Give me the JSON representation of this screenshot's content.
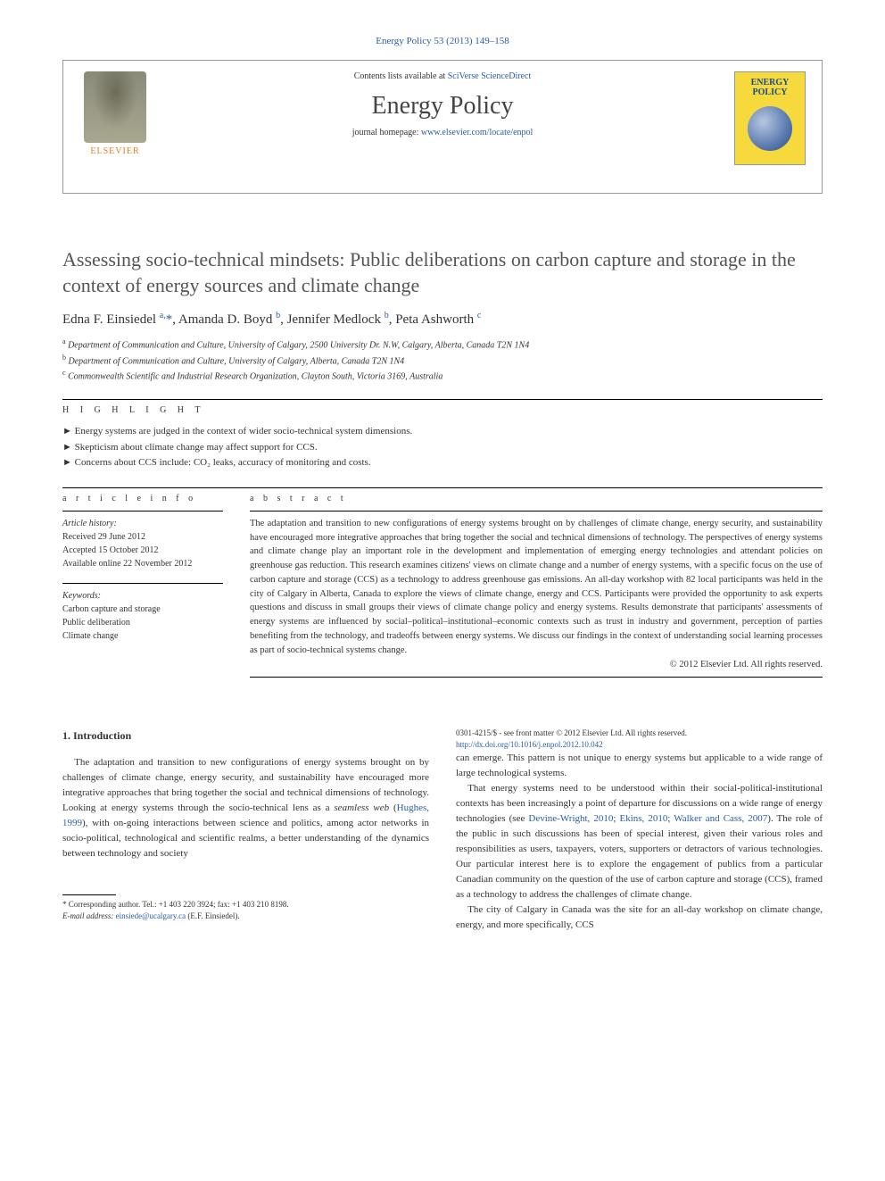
{
  "journal_ref": "Energy Policy 53 (2013) 149–158",
  "header": {
    "contents_text": "Contents lists available at ",
    "contents_link": "SciVerse ScienceDirect",
    "journal_name": "Energy Policy",
    "homepage_label": "journal homepage: ",
    "homepage_url": "www.elsevier.com/locate/enpol",
    "publisher_label": "ELSEVIER",
    "cover_title": "ENERGY POLICY"
  },
  "title": "Assessing socio-technical mindsets: Public deliberations on carbon capture and storage in the context of energy sources and climate change",
  "authors_html": "Edna F. Einsiedel <sup>a,</sup>*, Amanda D. Boyd <sup>b</sup>, Jennifer Medlock <sup>b</sup>, Peta Ashworth <sup>c</sup>",
  "affiliations": [
    {
      "sup": "a",
      "text": "Department of Communication and Culture, University of Calgary, 2500 University Dr. N.W, Calgary, Alberta, Canada T2N 1N4"
    },
    {
      "sup": "b",
      "text": "Department of Communication and Culture, University of Calgary, Alberta, Canada T2N 1N4"
    },
    {
      "sup": "c",
      "text": "Commonwealth Scientific and Industrial Research Organization, Clayton South, Victoria 3169, Australia"
    }
  ],
  "highlight_label": "H I G H L I G H T",
  "highlights": [
    "Energy systems are judged in the context of wider socio-technical system dimensions.",
    "Skepticism about climate change may affect support for CCS.",
    "Concerns about CCS include: CO₂ leaks, accuracy of monitoring and costs."
  ],
  "article_info_label": "a r t i c l e  i n f o",
  "abstract_label": "a b s t r a c t",
  "history": {
    "head": "Article history:",
    "received": "Received 29 June 2012",
    "accepted": "Accepted 15 October 2012",
    "online": "Available online 22 November 2012"
  },
  "keywords": {
    "head": "Keywords:",
    "items": [
      "Carbon capture and storage",
      "Public deliberation",
      "Climate change"
    ]
  },
  "abstract": "The adaptation and transition to new configurations of energy systems brought on by challenges of climate change, energy security, and sustainability have encouraged more integrative approaches that bring together the social and technical dimensions of technology. The perspectives of energy systems and climate change play an important role in the development and implementation of emerging energy technologies and attendant policies on greenhouse gas reduction. This research examines citizens' views on climate change and a number of energy systems, with a specific focus on the use of carbon capture and storage (CCS) as a technology to address greenhouse gas emissions. An all-day workshop with 82 local participants was held in the city of Calgary in Alberta, Canada to explore the views of climate change, energy and CCS. Participants were provided the opportunity to ask experts questions and discuss in small groups their views of climate change policy and energy systems. Results demonstrate that participants' assessments of energy systems are influenced by social–political–institutional–economic contexts such as trust in industry and government, perception of parties benefiting from the technology, and tradeoffs between energy systems. We discuss our findings in the context of understanding social learning processes as part of socio-technical systems change.",
  "copyright": "© 2012 Elsevier Ltd. All rights reserved.",
  "intro_heading": "1. Introduction",
  "intro_p1": "The adaptation and transition to new configurations of energy systems brought on by challenges of climate change, energy security, and sustainability have encouraged more integrative approaches that bring together the social and technical dimensions of technology. Looking at energy systems through the socio-technical lens as a seamless web (Hughes, 1999), with on-going interactions between science and politics, among actor networks in socio-political, technological and scientific realms, a better understanding of the dynamics between technology and society",
  "intro_p2": "can emerge. This pattern is not unique to energy systems but applicable to a wide range of large technological systems.",
  "intro_p3_pre": "That energy systems need to be understood within their social-political-institutional contexts has been increasingly a point of departure for discussions on a wide range of energy technologies (see ",
  "intro_p3_links": {
    "l1": "Devine-Wright, 2010",
    "l2": "Ekins, 2010",
    "l3": "Walker and Cass, 2007"
  },
  "intro_p3_post": "). The role of the public in such discussions has been of special interest, given their various roles and responsibilities as users, taxpayers, voters, supporters or detractors of various technologies. Our particular interest here is to explore the engagement of publics from a particular Canadian community on the question of the use of carbon capture and storage (CCS), framed as a technology to address the challenges of climate change.",
  "intro_p4": "The city of Calgary in Canada was the site for an all-day workshop on climate change, energy, and more specifically, CCS",
  "footnote": {
    "corr": "* Corresponding author. Tel.: +1 403 220 3924; fax: +1 403 210 8198.",
    "email_label": "E-mail address: ",
    "email": "einsiede@ucalgary.ca",
    "email_suffix": " (E.F. Einsiedel)."
  },
  "doi": {
    "line1": "0301-4215/$ - see front matter © 2012 Elsevier Ltd. All rights reserved.",
    "line2": "http://dx.doi.org/10.1016/j.enpol.2012.10.042"
  },
  "hughes_link": "Hughes, 1999"
}
